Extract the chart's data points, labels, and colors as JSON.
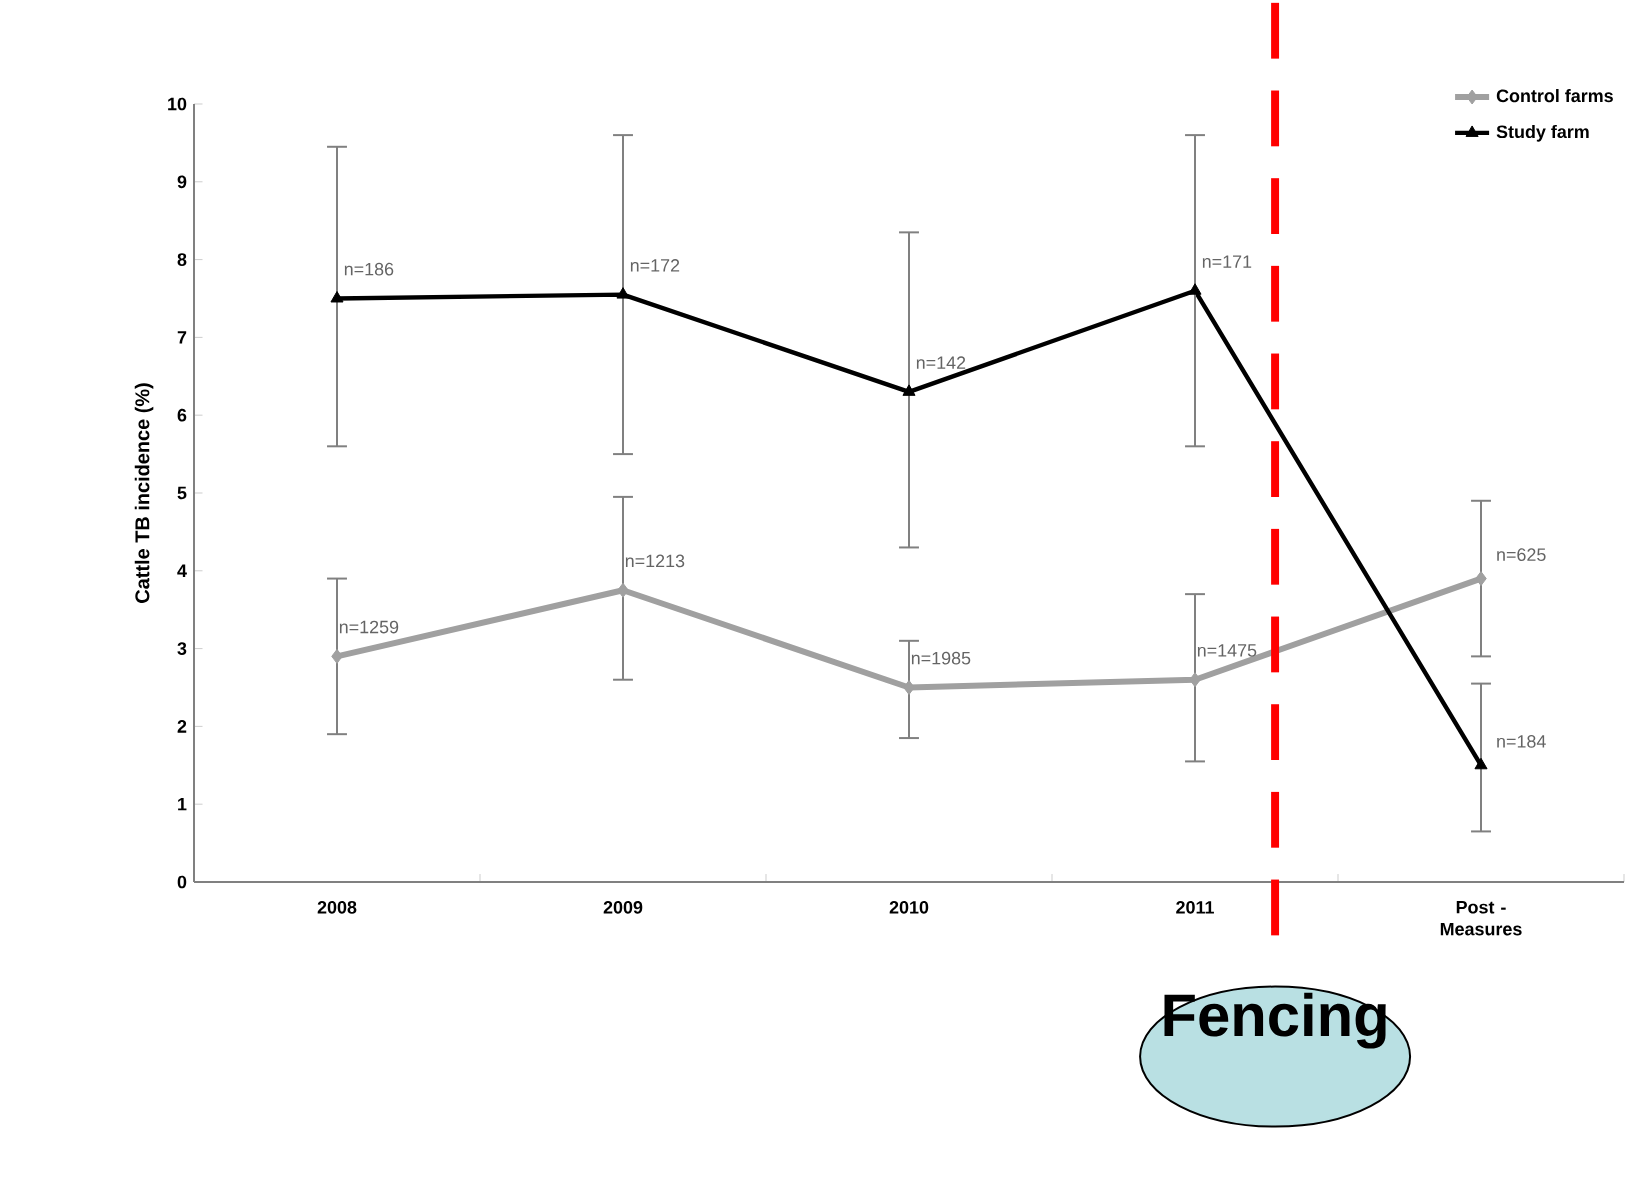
{
  "chart_data": {
    "type": "line",
    "ylabel": "Cattle TB incidence (%)",
    "categories": [
      "2008",
      "2009",
      "2010",
      "2011",
      "Post - Measures"
    ],
    "series": [
      {
        "name": "Control farms",
        "color": "#a0a0a0",
        "marker": "diamond",
        "values": [
          2.9,
          3.75,
          2.5,
          2.6,
          3.9
        ],
        "errors": [
          [
            1.9,
            3.9
          ],
          [
            2.6,
            4.95
          ],
          [
            1.85,
            3.1
          ],
          [
            1.55,
            3.7
          ],
          [
            2.9,
            4.9
          ]
        ]
      },
      {
        "name": "Study farm",
        "color": "#000000",
        "marker": "triangle",
        "values": [
          7.5,
          7.55,
          6.3,
          7.6,
          1.5
        ],
        "errors": [
          [
            5.6,
            9.45
          ],
          [
            5.5,
            9.6
          ],
          [
            4.3,
            8.35
          ],
          [
            5.6,
            9.6
          ],
          [
            0.65,
            2.55
          ]
        ]
      }
    ],
    "ylim": [
      0,
      10
    ],
    "yticks": [
      0,
      1,
      2,
      3,
      4,
      5,
      6,
      7,
      8,
      9,
      10
    ],
    "grid": false,
    "legend": "top right",
    "line_style": "solid",
    "annotations": [
      "Fencing",
      {
        "text": "n=1259",
        "x": "2008",
        "y": 2.9
      },
      {
        "text": "n=1213",
        "x": "2009",
        "y": 3.75
      },
      {
        "text": "n=1985",
        "x": "2010",
        "y": 2.5
      },
      {
        "text": "n=1475",
        "x": "2011",
        "y": 2.6
      },
      {
        "text": "n=625",
        "x": "Post - Measures",
        "y": 3.9
      },
      {
        "text": "n=186",
        "x": "2008",
        "y": 7.5
      },
      {
        "text": "n=172",
        "x": "2009",
        "y": 7.55
      },
      {
        "text": "n=142",
        "x": "2010",
        "y": 6.3
      },
      {
        "text": "n=171",
        "x": "2011",
        "y": 7.6
      },
      {
        "text": "n=184",
        "x": "Post - Measures",
        "y": 1.5
      }
    ]
  }
}
